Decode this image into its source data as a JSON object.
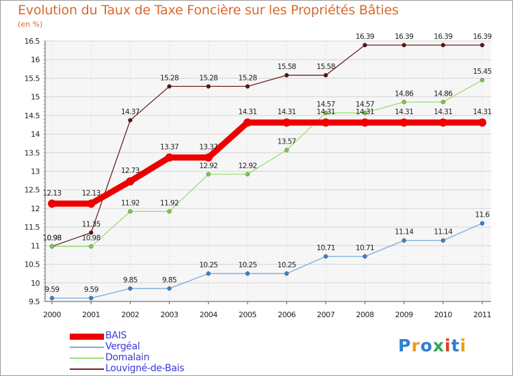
{
  "title": "Evolution du Taux de Taxe Foncière sur les Propriétés Bâties",
  "unit_label": "(en %)",
  "logo": {
    "text": "Proxiti",
    "colors": [
      "#2f7fd1",
      "#e8a020",
      "#2f7fd1",
      "#2fa85a",
      "#d8402a",
      "#2f7fd1",
      "#e8a020"
    ]
  },
  "chart_data": {
    "type": "line",
    "title": "Evolution du Taux de Taxe Foncière sur les Propriétés Bâties",
    "ylabel": "(en %)",
    "xlabel": "",
    "ylim": [
      9.5,
      16.5
    ],
    "yticks": [
      9.5,
      10,
      10.5,
      11,
      11.5,
      12,
      12.5,
      13,
      13.5,
      14,
      14.5,
      15,
      15.5,
      16,
      16.5
    ],
    "ytick_labels": [
      "9.5",
      "10",
      "10.5",
      "11",
      "11.5",
      "12",
      "12.5",
      "13",
      "13.5",
      "14",
      "14.5",
      "15",
      "15.5",
      "16",
      "16.5"
    ],
    "x": [
      "2000",
      "2001",
      "2002",
      "2003",
      "2004",
      "2005",
      "2006",
      "2007",
      "2008",
      "2009",
      "2010",
      "2011"
    ],
    "grid": true,
    "legend_position": "bottom-left",
    "series": [
      {
        "name": "Louvigné-de-Bais",
        "color": "#6b1f1f",
        "marker": "#5a1515",
        "width": 1.3,
        "values": [
          10.98,
          11.35,
          14.37,
          15.28,
          15.28,
          15.28,
          15.58,
          15.58,
          16.39,
          16.39,
          16.39,
          16.39
        ],
        "labels": [
          "10.98",
          "11.35",
          "14.37",
          "15.28",
          "15.28",
          "15.28",
          "15.58",
          "15.58",
          "16.39",
          "16.39",
          "16.39",
          "16.39"
        ]
      },
      {
        "name": "Domalain",
        "color": "#99dd77",
        "marker": "#77cc44",
        "width": 1.3,
        "values": [
          10.98,
          10.98,
          11.92,
          11.92,
          12.92,
          12.92,
          13.57,
          14.57,
          14.57,
          14.86,
          14.86,
          15.45
        ],
        "labels": [
          "10.98",
          "10.98",
          "11.92",
          "11.92",
          "12.92",
          "12.92",
          "13.57",
          "14.57",
          "14.57",
          "14.86",
          "14.86",
          "15.45"
        ]
      },
      {
        "name": "Vergéal",
        "color": "#7aaad8",
        "marker": "#3a82c8",
        "width": 1.3,
        "values": [
          9.59,
          9.59,
          9.85,
          9.85,
          10.25,
          10.25,
          10.25,
          10.71,
          10.71,
          11.14,
          11.14,
          11.6
        ],
        "labels": [
          "9.59",
          "9.59",
          "9.85",
          "9.85",
          "10.25",
          "10.25",
          "10.25",
          "10.71",
          "10.71",
          "11.14",
          "11.14",
          "11.6"
        ]
      },
      {
        "name": "BAIS",
        "color": "#ee0000",
        "marker": "#ee0000",
        "width": 9,
        "values": [
          12.13,
          12.13,
          12.73,
          13.37,
          13.37,
          14.31,
          14.31,
          14.31,
          14.31,
          14.31,
          14.31,
          14.31
        ],
        "labels": [
          "12.13",
          "12.13",
          "12.73",
          "13.37",
          "13.37",
          "14.31",
          "14.31",
          "14.31",
          "14.31",
          "14.31",
          "14.31",
          "14.31"
        ]
      }
    ],
    "legend": [
      {
        "name": "BAIS",
        "color": "#ee0000",
        "width": 9
      },
      {
        "name": "Vergéal",
        "color": "#7aaad8",
        "width": 2
      },
      {
        "name": "Domalain",
        "color": "#99dd77",
        "width": 2
      },
      {
        "name": "Louvigné-de-Bais",
        "color": "#6b1f1f",
        "width": 2
      }
    ]
  }
}
